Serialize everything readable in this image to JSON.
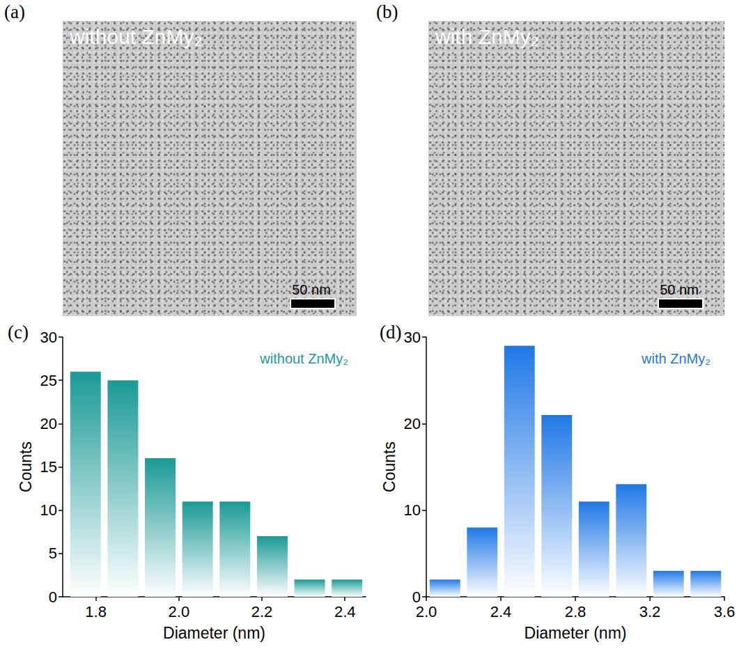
{
  "panels": [
    {
      "label": "(a)",
      "type": "image",
      "caption": "without ZnMy₂",
      "scale_bar": "50 nm"
    },
    {
      "label": "(b)",
      "type": "image",
      "caption": "with ZnMy₂",
      "scale_bar": "50 nm"
    }
  ],
  "chart_data": [
    {
      "type": "histogram",
      "panel_label": "(c)",
      "x_label": "Diameter (nm)",
      "y_label": "Counts",
      "legend": "upper right",
      "bins": [
        1.73,
        1.82,
        1.91,
        2.0,
        2.09,
        2.18,
        2.27,
        2.36,
        2.45
      ],
      "series": [
        {
          "name": "without ZnMy₂",
          "color": "#1a9a96",
          "values": [
            26,
            25,
            16,
            11,
            11,
            7,
            2,
            2
          ]
        }
      ],
      "xlim": [
        1.72,
        2.45
      ],
      "xticks": [
        1.8,
        {
          "value": 2,
          "label": "2.0"
        },
        2.2,
        2.4
      ],
      "ylim": [
        0,
        30
      ],
      "yticks": [
        0,
        5,
        10,
        15,
        20,
        25,
        30
      ],
      "grid": false
    },
    {
      "type": "histogram",
      "panel_label": "(d)",
      "x_label": "Diameter (nm)",
      "y_label": "Counts",
      "legend": "upper right",
      "bins": [
        2.0,
        2.2,
        2.4,
        2.6,
        2.8,
        3.0,
        3.2,
        3.4,
        3.6
      ],
      "series": [
        {
          "name": "with ZnMy₂",
          "color": "#1f78e6",
          "values": [
            2,
            8,
            29,
            21,
            11,
            13,
            3,
            3
          ]
        }
      ],
      "xlim": [
        2,
        3.6
      ],
      "xticks": [
        {
          "value": 2,
          "label": "2.0"
        },
        2.4,
        2.8,
        3.2,
        3.6
      ],
      "ylim": [
        0,
        30
      ],
      "yticks": [
        0,
        10,
        20,
        30
      ],
      "grid": false
    }
  ]
}
